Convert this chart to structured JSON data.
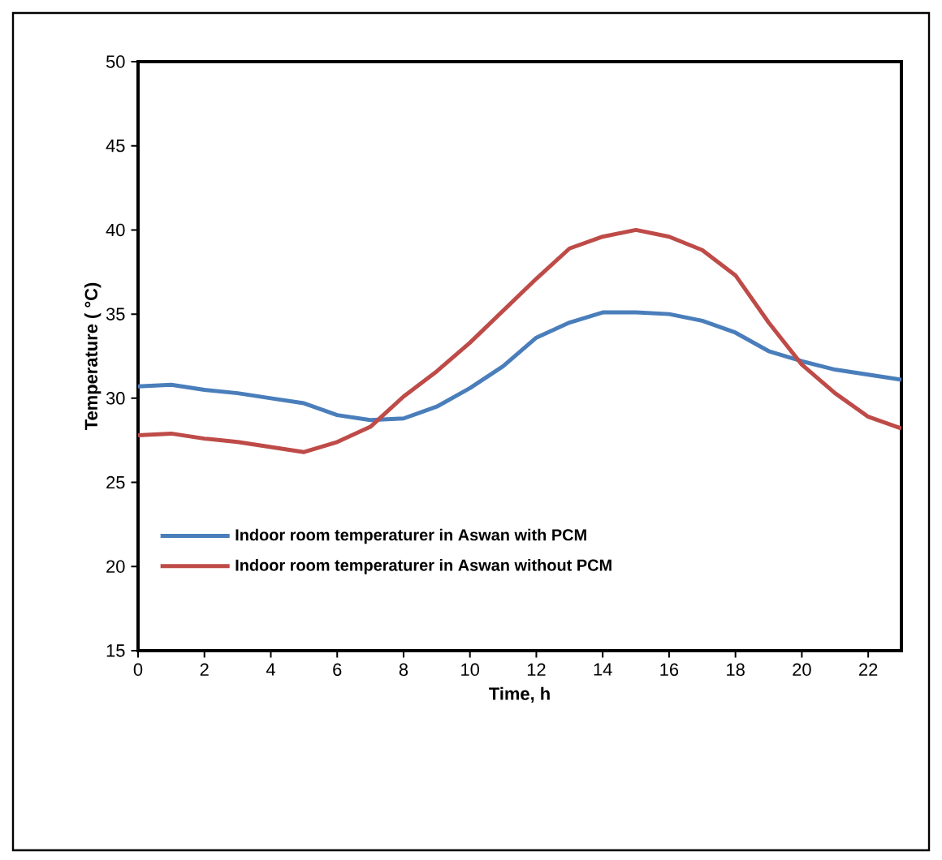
{
  "chart_data": {
    "type": "line",
    "xlabel": "Time, h",
    "ylabel": "Temperature ( °C)",
    "x": [
      0,
      1,
      2,
      3,
      4,
      5,
      6,
      7,
      8,
      9,
      10,
      11,
      12,
      13,
      14,
      15,
      16,
      17,
      18,
      19,
      20,
      21,
      22,
      23
    ],
    "series": [
      {
        "name": "Indoor room temperaturer in Aswan  with PCM",
        "color": "#4a7ebb",
        "values": [
          30.7,
          30.8,
          30.5,
          30.3,
          30.0,
          29.7,
          29.0,
          28.7,
          28.8,
          29.5,
          30.6,
          31.9,
          33.6,
          34.5,
          35.1,
          35.1,
          35.0,
          34.6,
          33.9,
          32.8,
          32.2,
          31.7,
          31.4,
          31.1
        ]
      },
      {
        "name": "Indoor room temperaturer in Aswan  without PCM",
        "color": "#be4b48",
        "values": [
          27.8,
          27.9,
          27.6,
          27.4,
          27.1,
          26.8,
          27.4,
          28.3,
          30.1,
          31.6,
          33.3,
          35.2,
          37.1,
          38.9,
          39.6,
          40.0,
          39.6,
          38.8,
          37.3,
          34.5,
          32.0,
          30.3,
          28.9,
          28.2
        ]
      }
    ],
    "xlim": [
      0,
      23
    ],
    "xticks": [
      0,
      2,
      4,
      6,
      8,
      10,
      12,
      14,
      16,
      18,
      20,
      22
    ],
    "ylim": [
      15,
      50
    ],
    "yticks": [
      15,
      20,
      25,
      30,
      35,
      40,
      45,
      50
    ],
    "legend": "bottom left",
    "grid": false,
    "marker": "none",
    "line_style": "solid"
  }
}
